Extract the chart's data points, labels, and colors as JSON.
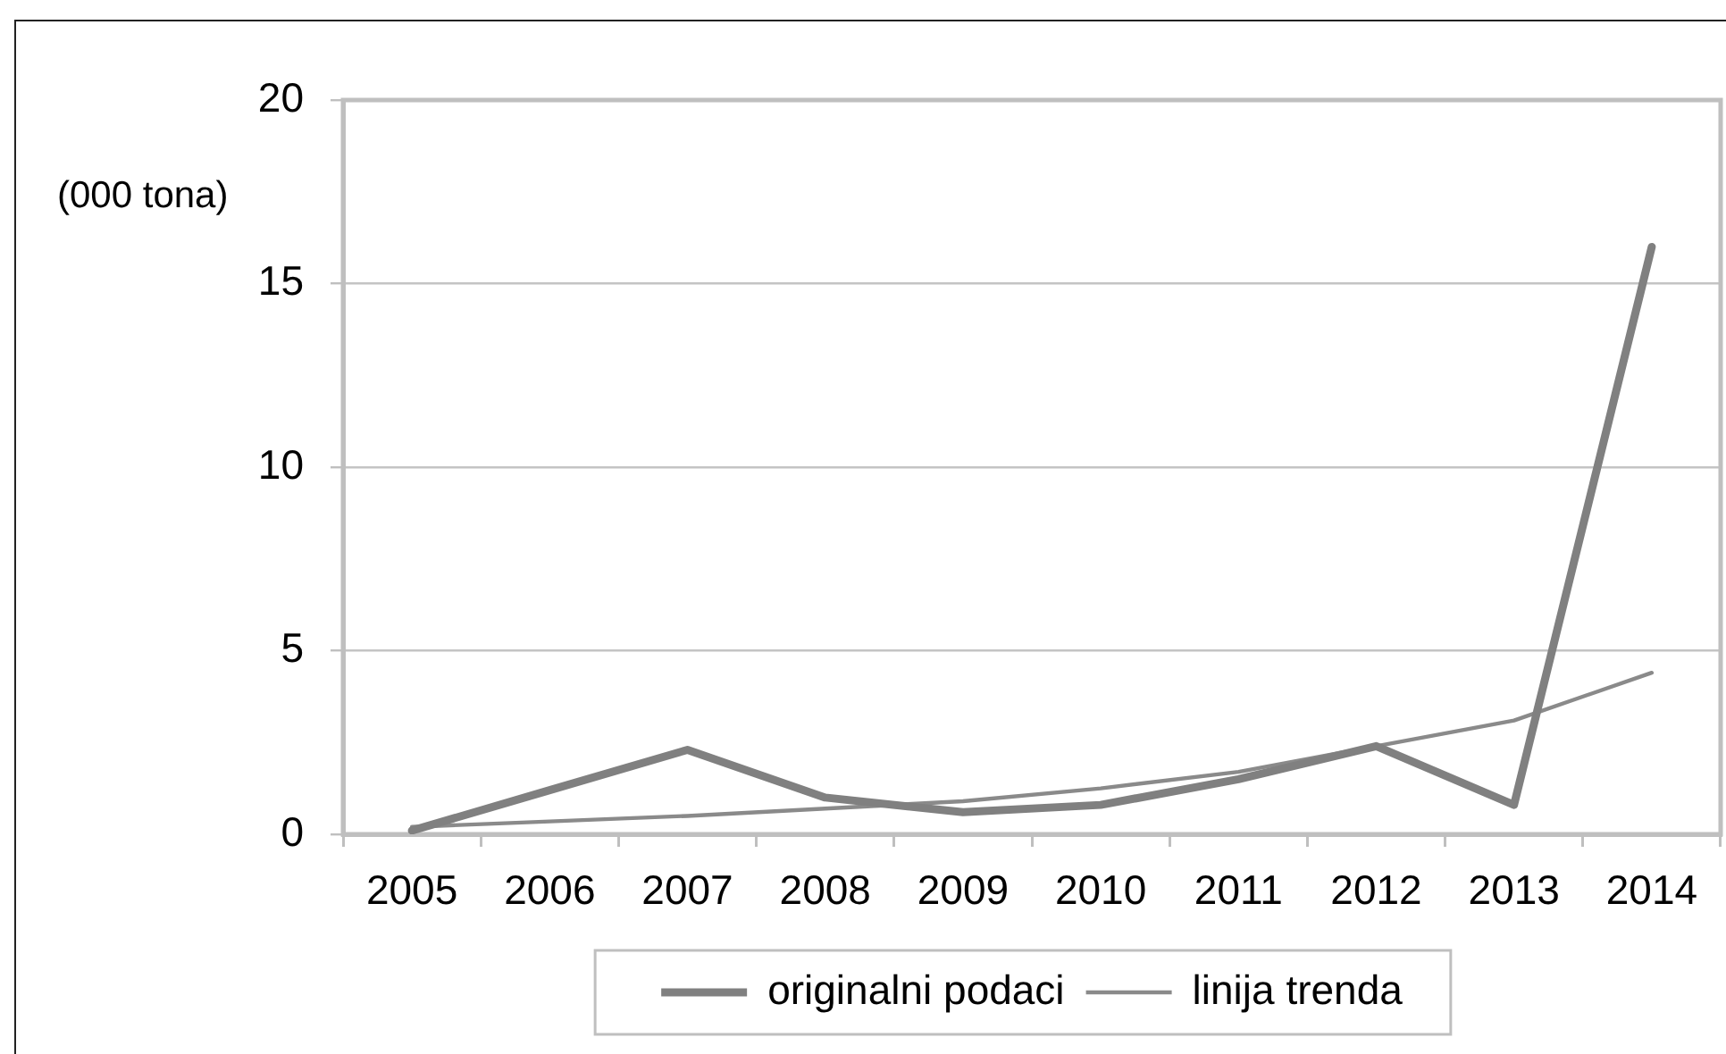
{
  "chart_data": {
    "type": "line",
    "ylabel": "(000 tona)",
    "categories": [
      "2005",
      "2006",
      "2007",
      "2008",
      "2009",
      "2010",
      "2011",
      "2012",
      "2013",
      "2014"
    ],
    "series": [
      {
        "name": "originalni podaci",
        "color": "#808080",
        "values": [
          0.1,
          1.2,
          2.3,
          1.0,
          0.6,
          0.8,
          1.5,
          2.4,
          0.8,
          16.0
        ]
      },
      {
        "name": "linija trenda",
        "color": "#8a8a8a",
        "values": [
          0.2,
          0.35,
          0.5,
          0.7,
          0.9,
          1.25,
          1.7,
          2.4,
          3.1,
          4.4
        ]
      }
    ],
    "ylim": [
      0,
      20
    ],
    "yticks": [
      0,
      5,
      10,
      15,
      20
    ],
    "grid": "y",
    "legend": "bottom",
    "marker": "none",
    "line_style": "solid"
  }
}
